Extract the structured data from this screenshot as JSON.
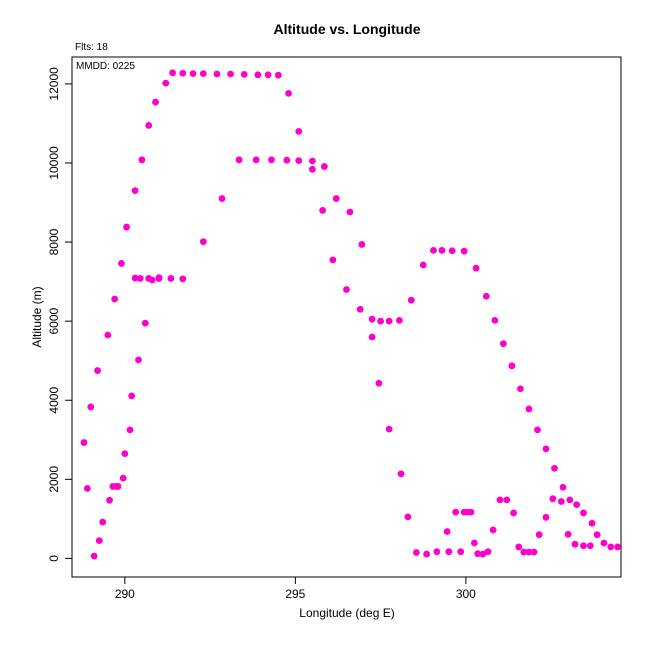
{
  "chart_data": {
    "type": "scatter",
    "title": "Altitude vs. Longitude",
    "xlabel": "Longitude (deg E)",
    "ylabel": "Altitude (m)",
    "xlim": [
      288.45,
      304.55
    ],
    "ylim": [
      -470,
      12680
    ],
    "x_ticks": [
      290,
      295,
      300
    ],
    "y_ticks": [
      0,
      2000,
      4000,
      6000,
      8000,
      10000,
      12000
    ],
    "grid": false,
    "legend": "none",
    "point_color": "#FF00CC",
    "annotations": [
      "Flts: 18",
      "MMDD: 0225"
    ],
    "series": [
      {
        "x": [
          288.8,
          288.9,
          289.0,
          289.1,
          289.2,
          289.25,
          289.35,
          289.5,
          289.55,
          289.65,
          289.7,
          289.75,
          289.8,
          289.9,
          289.95,
          290.0,
          290.05,
          290.15,
          290.2,
          290.3,
          290.4,
          290.5,
          290.6,
          290.7,
          290.8,
          290.9,
          291.0,
          291.2,
          291.4,
          291.7,
          292.0,
          292.3,
          292.7,
          293.1,
          293.5,
          293.9,
          294.2,
          294.5,
          294.8,
          295.1,
          295.5,
          295.8,
          296.1,
          296.5,
          296.9,
          297.25,
          297.5,
          297.75,
          298.05,
          298.4,
          298.75,
          299.05,
          299.3,
          299.6,
          299.95,
          300.3,
          300.6,
          300.85,
          301.1,
          301.35,
          301.6,
          301.85,
          302.1,
          302.35,
          302.6,
          302.85,
          303.05,
          303.25,
          303.45,
          303.7,
          303.85,
          304.05,
          304.25,
          304.45
        ],
        "y": [
          2930,
          1770,
          3830,
          60,
          4750,
          450,
          920,
          5650,
          1470,
          1820,
          6560,
          1820,
          1820,
          7460,
          2030,
          2650,
          8380,
          3250,
          4110,
          9300,
          5020,
          10080,
          5950,
          10950,
          7040,
          11540,
          7100,
          12020,
          12280,
          12270,
          12260,
          12260,
          12250,
          12250,
          12240,
          12230,
          12230,
          12220,
          11760,
          10800,
          9840,
          8800,
          7550,
          6800,
          6300,
          6050,
          6000,
          6000,
          6020,
          6530,
          7420,
          7790,
          7790,
          7780,
          7770,
          7340,
          6630,
          6020,
          5430,
          4870,
          4290,
          3780,
          3250,
          2770,
          2280,
          1800,
          1480,
          1360,
          1150,
          890,
          600,
          390,
          290,
          290
        ],
        "x_extra": []
      },
      {
        "x": [
          290.3,
          290.45,
          290.7,
          291.0,
          291.35,
          291.7,
          292.3,
          292.85,
          293.35,
          293.85,
          294.3,
          294.75,
          295.1,
          295.5,
          295.85,
          296.2,
          296.6,
          296.95,
          297.25,
          297.45,
          297.75,
          298.1,
          298.3,
          298.55,
          298.85,
          299.15,
          299.5,
          299.85
        ],
        "y": [
          7090,
          7080,
          7080,
          7080,
          7080,
          7070,
          8010,
          9100,
          10080,
          10080,
          10080,
          10070,
          10060,
          10050,
          9910,
          9100,
          8760,
          7940,
          5600,
          4430,
          3270,
          2140,
          1050,
          150,
          110,
          170,
          170,
          170
        ]
      },
      {
        "x": [
          299.45,
          299.7,
          299.95,
          300.05,
          300.15,
          300.25,
          300.35,
          300.5,
          300.65,
          300.8,
          301.0,
          301.2,
          301.4,
          301.55,
          301.7,
          301.85,
          302.0,
          302.15,
          302.35,
          302.55,
          302.8,
          303.0,
          303.2,
          303.45,
          303.65
        ],
        "y": [
          680,
          1170,
          1170,
          1170,
          1170,
          390,
          120,
          110,
          170,
          720,
          1480,
          1480,
          1150,
          290,
          160,
          160,
          160,
          600,
          1040,
          1510,
          1440,
          610,
          360,
          320,
          320
        ]
      }
    ]
  }
}
